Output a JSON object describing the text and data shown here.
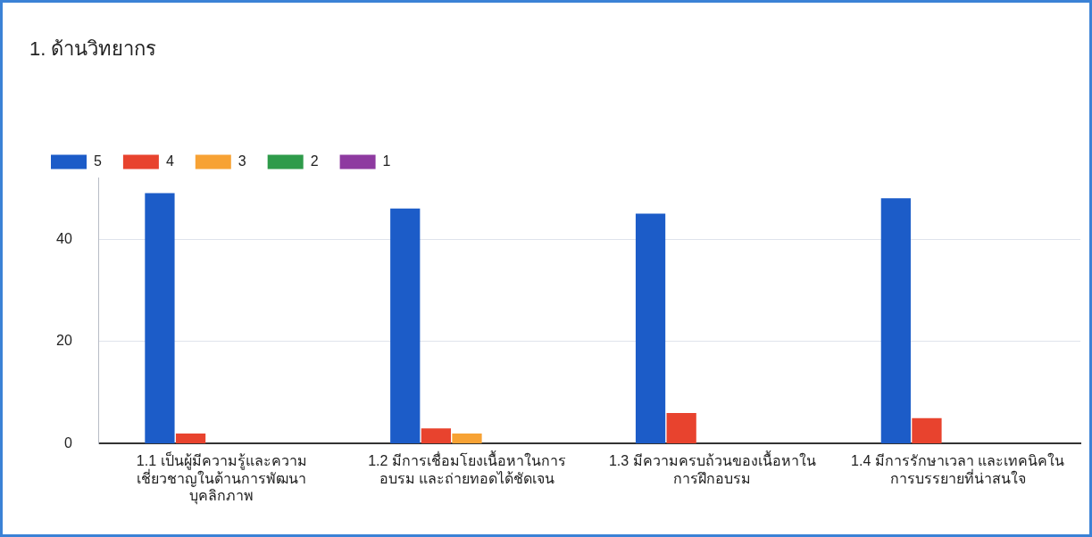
{
  "chart_data": {
    "type": "bar",
    "title": "1. ด้านวิทยากร",
    "categories": [
      "1.1 เป็นผู้มีความรู้และความเชี่ยวชาญในด้านการพัฒนาบุคลิกภาพ",
      "1.2 มีการเชื่อมโยงเนื้อหาในการอบรม และถ่ายทอดได้ชัดเจน",
      "1.3 มีความครบถ้วนของเนื้อหาในการฝึกอบรม",
      "1.4 มีการรักษาเวลา และเทคนิคในการบรรยายที่น่าสนใจ"
    ],
    "series": [
      {
        "name": "5",
        "color": "#1c5cc8",
        "values": [
          49,
          46,
          45,
          48
        ]
      },
      {
        "name": "4",
        "color": "#e8432e",
        "values": [
          2,
          3,
          6,
          5
        ]
      },
      {
        "name": "3",
        "color": "#f7a234",
        "values": [
          0,
          2,
          0,
          0
        ]
      },
      {
        "name": "2",
        "color": "#2e9b4a",
        "values": [
          0,
          0,
          0,
          0
        ]
      },
      {
        "name": "1",
        "color": "#8e3aa0",
        "values": [
          0,
          0,
          0,
          0
        ]
      }
    ],
    "ylim": [
      0,
      52
    ],
    "yticks": [
      0,
      20,
      40
    ],
    "grid": "y",
    "legend": "top left"
  }
}
